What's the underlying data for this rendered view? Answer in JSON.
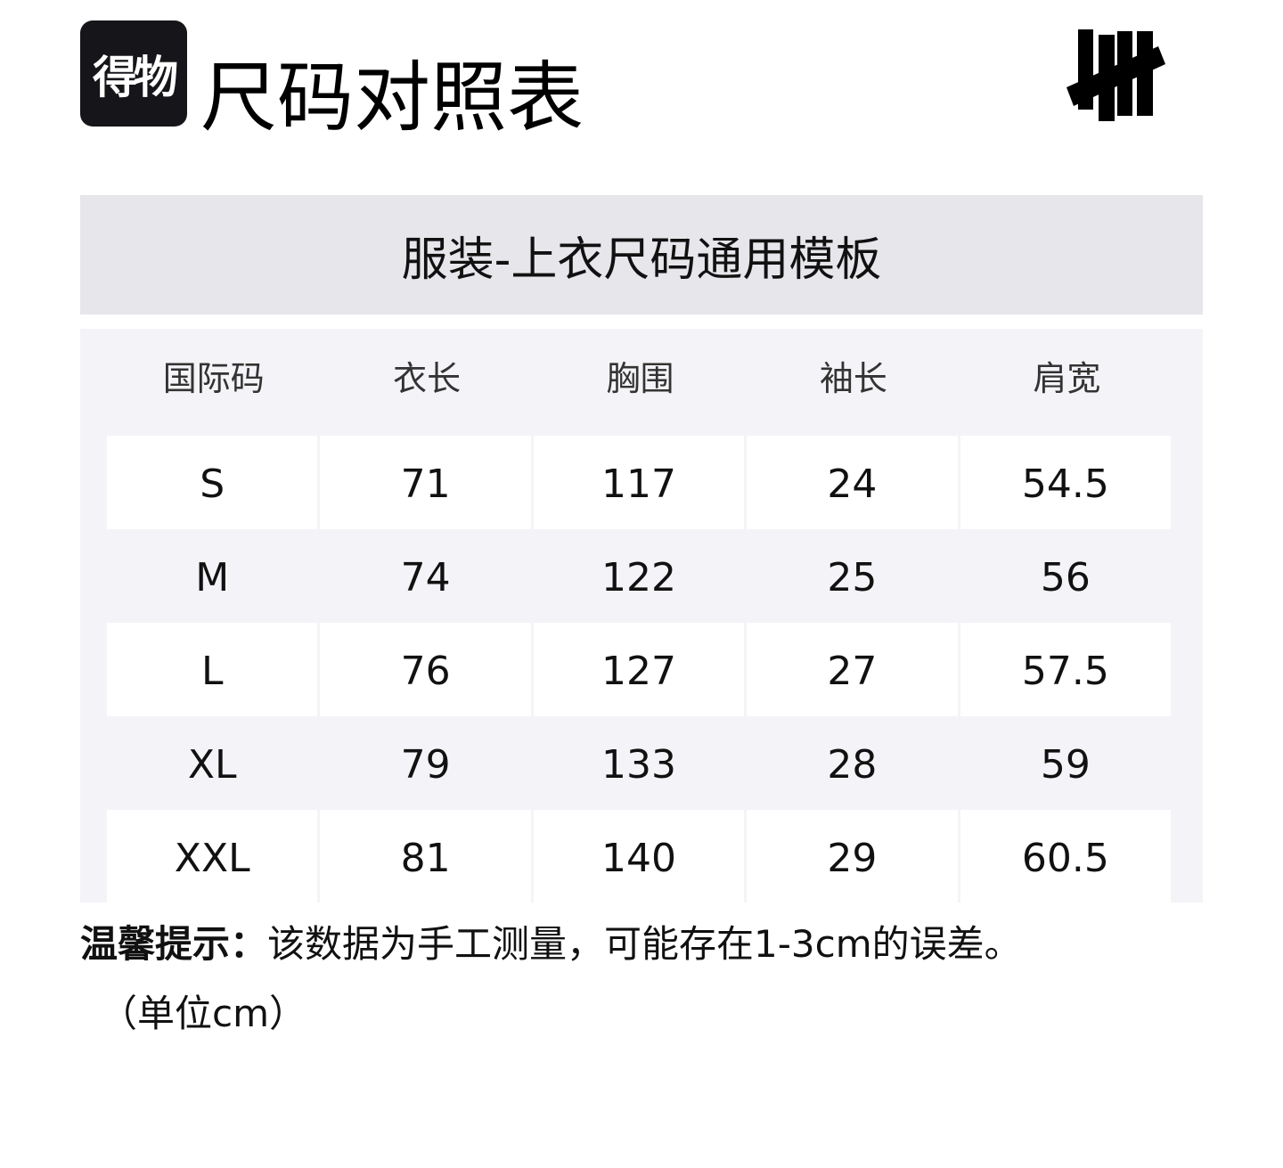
{
  "logo": {
    "text": "得物",
    "bg": "#16161a"
  },
  "title": "尺码对照表",
  "table": {
    "title": "服装-上衣尺码通用模板",
    "headers": [
      "国际码",
      "衣长",
      "胸围",
      "袖长",
      "肩宽"
    ],
    "rows": [
      [
        "S",
        "71",
        "117",
        "24",
        "54.5"
      ],
      [
        "M",
        "74",
        "122",
        "25",
        "56"
      ],
      [
        "L",
        "76",
        "127",
        "27",
        "57.5"
      ],
      [
        "XL",
        "79",
        "133",
        "28",
        "59"
      ],
      [
        "XXL",
        "81",
        "140",
        "29",
        "60.5"
      ]
    ]
  },
  "note": {
    "label": "温馨提示：",
    "text": "该数据为手工测量，可能存在1-3cm的误差。",
    "unit": "（单位cm）"
  },
  "colors": {
    "title_band": "#e6e6eb",
    "table_bg": "#f4f4f8"
  }
}
